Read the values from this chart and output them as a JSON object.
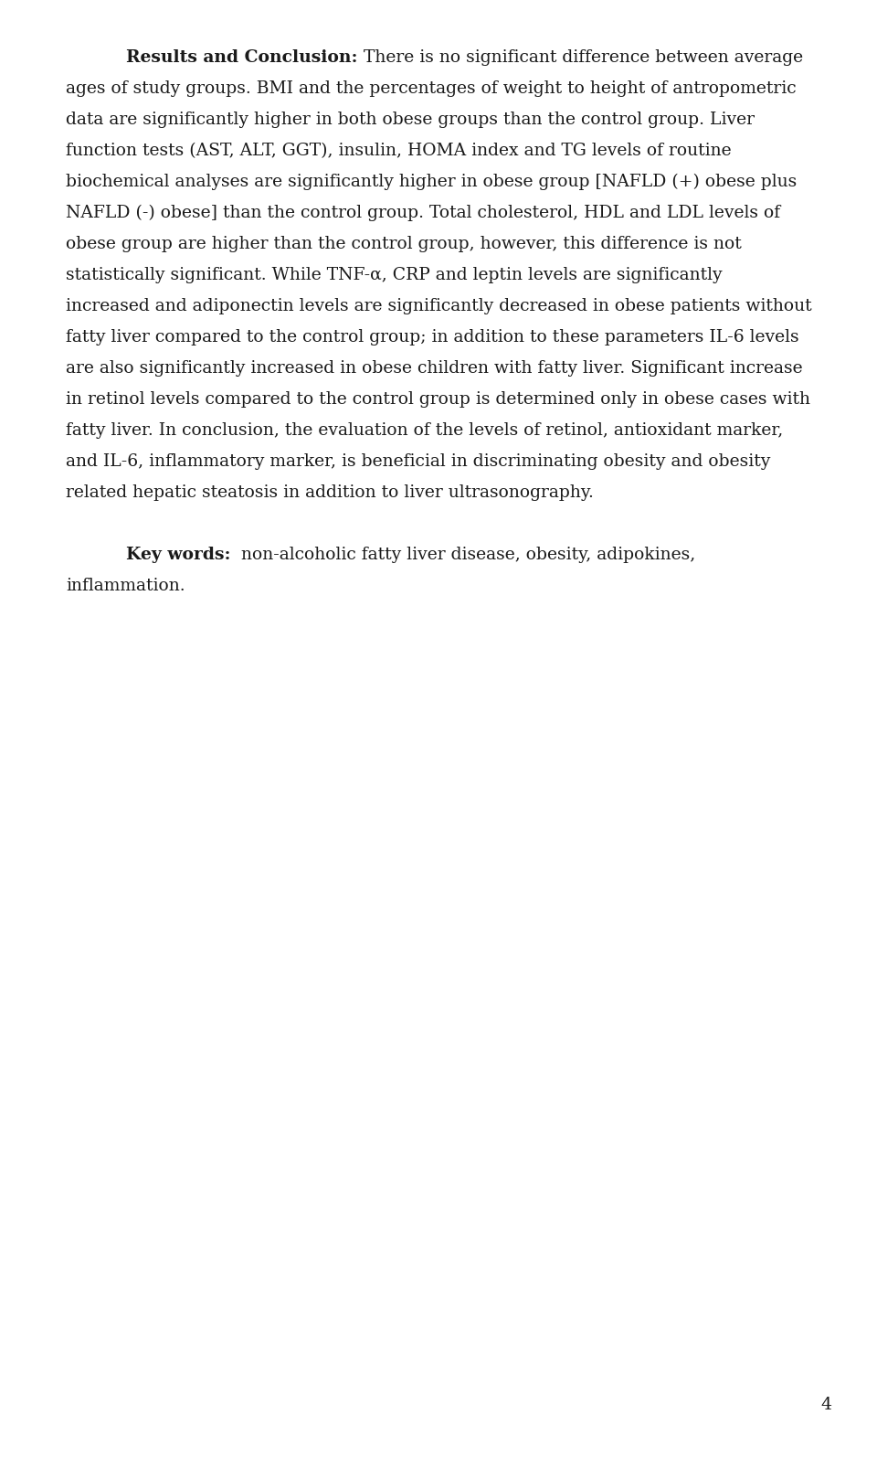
{
  "background_color": "#ffffff",
  "text_color": "#1a1a1a",
  "page_number": "4",
  "font_size": 13.5,
  "figsize": [
    9.6,
    15.94
  ],
  "dpi": 100,
  "lines": [
    {
      "indent": true,
      "parts": [
        [
          "Results and Conclusion:",
          true
        ],
        [
          " There is no significant difference between average",
          false
        ]
      ]
    },
    {
      "indent": false,
      "parts": [
        [
          "ages of study groups. BMI and the percentages of weight to height of antropometric",
          false
        ]
      ]
    },
    {
      "indent": false,
      "parts": [
        [
          "data are significantly higher in both obese groups than the control group. Liver",
          false
        ]
      ]
    },
    {
      "indent": false,
      "parts": [
        [
          "function tests (AST, ALT, GGT), insulin, HOMA index and TG levels of routine",
          false
        ]
      ]
    },
    {
      "indent": false,
      "parts": [
        [
          "biochemical analyses are significantly higher in obese group [NAFLD (+) obese plus",
          false
        ]
      ]
    },
    {
      "indent": false,
      "parts": [
        [
          "NAFLD (-) obese] than the control group. Total cholesterol, HDL and LDL levels of",
          false
        ]
      ]
    },
    {
      "indent": false,
      "parts": [
        [
          "obese group are higher than the control group, however, this difference is not",
          false
        ]
      ]
    },
    {
      "indent": false,
      "parts": [
        [
          "statistically significant. While TNF-α, CRP and leptin levels are significantly",
          false
        ]
      ]
    },
    {
      "indent": false,
      "parts": [
        [
          "increased and adiponectin levels are significantly decreased in obese patients without",
          false
        ]
      ]
    },
    {
      "indent": false,
      "parts": [
        [
          "fatty liver compared to the control group; in addition to these parameters IL-6 levels",
          false
        ]
      ]
    },
    {
      "indent": false,
      "parts": [
        [
          "are also significantly increased in obese children with fatty liver. Significant increase",
          false
        ]
      ]
    },
    {
      "indent": false,
      "parts": [
        [
          "in retinol levels compared to the control group is determined only in obese cases with",
          false
        ]
      ]
    },
    {
      "indent": false,
      "parts": [
        [
          "fatty liver. In conclusion, the evaluation of the levels of retinol, antioxidant marker,",
          false
        ]
      ]
    },
    {
      "indent": false,
      "parts": [
        [
          "and IL-6, inflammatory marker, is beneficial in discriminating obesity and obesity",
          false
        ]
      ]
    },
    {
      "indent": false,
      "parts": [
        [
          "related hepatic steatosis in addition to liver ultrasonography.",
          false
        ]
      ]
    },
    {
      "indent": false,
      "parts": [
        [
          "",
          false
        ]
      ]
    },
    {
      "indent": true,
      "parts": [
        [
          "Key words:",
          true
        ],
        [
          "  non-alcoholic fatty liver disease, obesity, adipokines,",
          false
        ]
      ]
    },
    {
      "indent": false,
      "parts": [
        [
          "inflammation.",
          false
        ]
      ]
    }
  ]
}
